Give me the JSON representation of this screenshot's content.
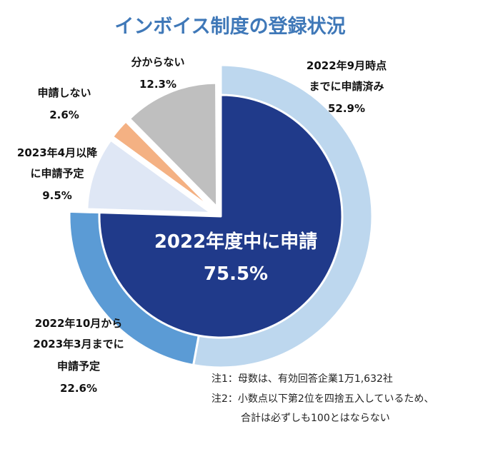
{
  "chart_data": {
    "type": "pie",
    "title": "インボイス制度の登録状況",
    "outer_ring": [
      {
        "name": "2022年9月時点までに申請済み",
        "lines": [
          "2022年9月時点",
          "までに申請済み"
        ],
        "value_label": "52.9%",
        "value": 52.9,
        "color": "#bdd7ee"
      },
      {
        "name": "2022年10月から2023年3月までに申請予定",
        "lines": [
          "2022年10月から",
          "2023年3月までに",
          "申請予定"
        ],
        "value_label": "22.6%",
        "value": 22.6,
        "color": "#5b9bd5"
      }
    ],
    "inner_total": {
      "label": "2022年度中に申請",
      "value_label": "75.5%",
      "value": 75.5,
      "color": "#203a8a"
    },
    "exploded_slices": [
      {
        "name": "2023年4月以降に申請予定",
        "lines": [
          "2023年4月以降",
          "に申請予定"
        ],
        "value_label": "9.5%",
        "value": 9.5,
        "color": "#dfe7f5"
      },
      {
        "name": "申請しない",
        "lines": [
          "申請しない"
        ],
        "value_label": "2.6%",
        "value": 2.6,
        "color": "#f4b183"
      },
      {
        "name": "分からない",
        "lines": [
          "分からない"
        ],
        "value_label": "12.3%",
        "value": 12.3,
        "color": "#bfbfbf"
      }
    ]
  },
  "notes": [
    "注1：母数は、有効回答企業1万1,632社",
    "注2：小数点以下第2位を四捨五入しているため、",
    "合計は必ずしも100とはならない"
  ]
}
